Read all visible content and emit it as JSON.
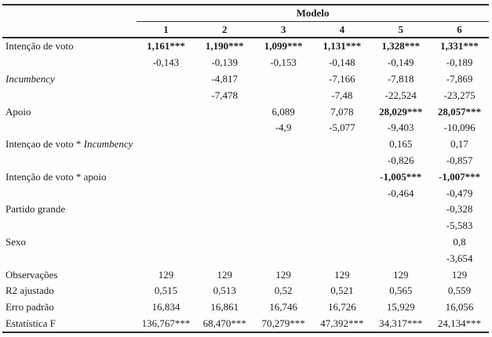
{
  "table": {
    "group_header": "Modelo",
    "columns": [
      "1",
      "2",
      "3",
      "4",
      "5",
      "6"
    ],
    "rows": [
      {
        "label": [
          {
            "text": "Intenção de voto",
            "italic": false
          }
        ],
        "cells": [
          "1,161***",
          "1,190***",
          "1,099***",
          "1,131***",
          "1,328***",
          "1,331***"
        ],
        "bold": [
          0,
          1,
          2,
          3,
          4,
          5
        ]
      },
      {
        "label": [],
        "cells": [
          "-0,143",
          "-0,139",
          "-0,153",
          "-0,148",
          "-0,149",
          "-0,189"
        ]
      },
      {
        "label": [
          {
            "text": "Incumbency",
            "italic": true
          }
        ],
        "cells": [
          "",
          "-4,817",
          "",
          "-7,166",
          "-7,818",
          "-7,869"
        ]
      },
      {
        "label": [],
        "cells": [
          "",
          "-7,478",
          "",
          "-7,48",
          "-22,524",
          "-23,275"
        ]
      },
      {
        "label": [
          {
            "text": "Apoio",
            "italic": false
          }
        ],
        "cells": [
          "",
          "",
          "6,089",
          "7,078",
          "28,029***",
          "28,057***"
        ],
        "bold": [
          4,
          5
        ]
      },
      {
        "label": [],
        "cells": [
          "",
          "",
          "-4,9",
          "-5,077",
          "-9,403",
          "-10,096"
        ]
      },
      {
        "label": [
          {
            "text": "Intençao de voto * ",
            "italic": false
          },
          {
            "text": "Incumbency",
            "italic": true
          }
        ],
        "cells": [
          "",
          "",
          "",
          "",
          "0,165",
          "0,17"
        ]
      },
      {
        "label": [],
        "cells": [
          "",
          "",
          "",
          "",
          "-0,826",
          "-0,857"
        ]
      },
      {
        "label": [
          {
            "text": "Intenção de voto * apoio",
            "italic": false
          }
        ],
        "cells": [
          "",
          "",
          "",
          "",
          "-1,005***",
          "-1,007***"
        ],
        "bold": [
          4,
          5
        ]
      },
      {
        "label": [],
        "cells": [
          "",
          "",
          "",
          "",
          "-0,464",
          "-0,479"
        ]
      },
      {
        "label": [
          {
            "text": "Partido grande",
            "italic": false
          }
        ],
        "cells": [
          "",
          "",
          "",
          "",
          "",
          "-0,328"
        ]
      },
      {
        "label": [],
        "cells": [
          "",
          "",
          "",
          "",
          "",
          "-5,583"
        ]
      },
      {
        "label": [
          {
            "text": "Sexo",
            "italic": false
          }
        ],
        "cells": [
          "",
          "",
          "",
          "",
          "",
          "0,8"
        ]
      },
      {
        "label": [],
        "cells": [
          "",
          "",
          "",
          "",
          "",
          "-3,654"
        ]
      },
      {
        "label": [
          {
            "text": "Observações",
            "italic": false
          }
        ],
        "cells": [
          "129",
          "129",
          "129",
          "129",
          "129",
          "129"
        ]
      },
      {
        "label": [
          {
            "text": "R2 ajustado",
            "italic": false
          }
        ],
        "cells": [
          "0,515",
          "0,513",
          "0,52",
          "0,521",
          "0,565",
          "0,559"
        ]
      },
      {
        "label": [
          {
            "text": "Erro padrão",
            "italic": false
          }
        ],
        "cells": [
          "16,834",
          "16,861",
          "16,746",
          "16,726",
          "15,929",
          "16,056"
        ]
      },
      {
        "label": [
          {
            "text": "Estatística F",
            "italic": false
          }
        ],
        "cells": [
          "136,767***",
          "68,470***",
          "70,279***",
          "47,392***",
          "34,317***",
          "24,134***"
        ]
      }
    ]
  }
}
